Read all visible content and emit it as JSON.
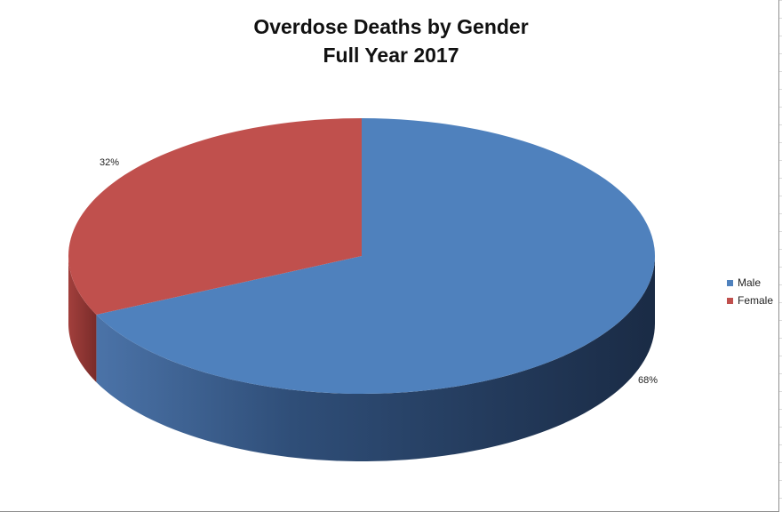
{
  "chart_data": {
    "type": "pie",
    "title": "Overdose Deaths by Gender",
    "subtitle": "Full Year 2017",
    "categories": [
      "Male",
      "Female"
    ],
    "values": [
      68,
      32
    ],
    "data_labels": [
      "68%",
      "32%"
    ],
    "colors": [
      "#4f81bd",
      "#c0504d"
    ],
    "legend": {
      "position": "right",
      "entries": [
        "Male",
        "Female"
      ]
    },
    "style": "3d"
  }
}
